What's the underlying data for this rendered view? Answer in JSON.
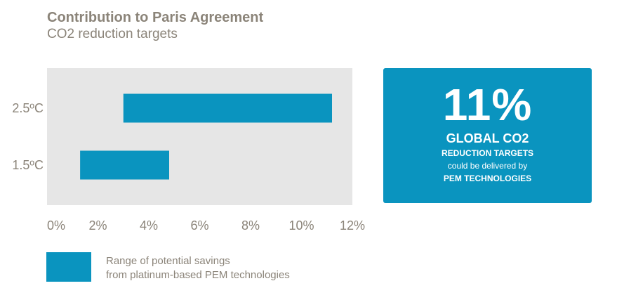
{
  "header": {
    "title": "Contribution to Paris Agreement",
    "subtitle": "CO2 reduction targets"
  },
  "chart_data": {
    "type": "bar",
    "orientation": "horizontal",
    "range_bars": true,
    "categories": [
      "2.5ºC",
      "1.5ºC"
    ],
    "series": [
      {
        "name": "Range of potential savings from platinum-based PEM technologies",
        "ranges": [
          [
            3.0,
            11.2
          ],
          [
            1.3,
            4.8
          ]
        ]
      }
    ],
    "xlim": [
      0,
      12
    ],
    "xticks": [
      0,
      2,
      4,
      6,
      8,
      10,
      12
    ],
    "xtick_labels": [
      "0%",
      "2%",
      "4%",
      "6%",
      "8%",
      "10%",
      "12%"
    ],
    "grid": false,
    "colors": {
      "bar": "#0a94bf",
      "plot_bg": "#e6e6e6",
      "text": "#8b8479"
    }
  },
  "callout": {
    "value": "11%",
    "line1": "GLOBAL CO2",
    "line2": "REDUCTION TARGETS",
    "line3": "could be delivered by",
    "line4": "PEM TECHNOLOGIES"
  },
  "legend": {
    "line1": "Range of potential savings",
    "line2": "from platinum-based PEM technologies"
  }
}
